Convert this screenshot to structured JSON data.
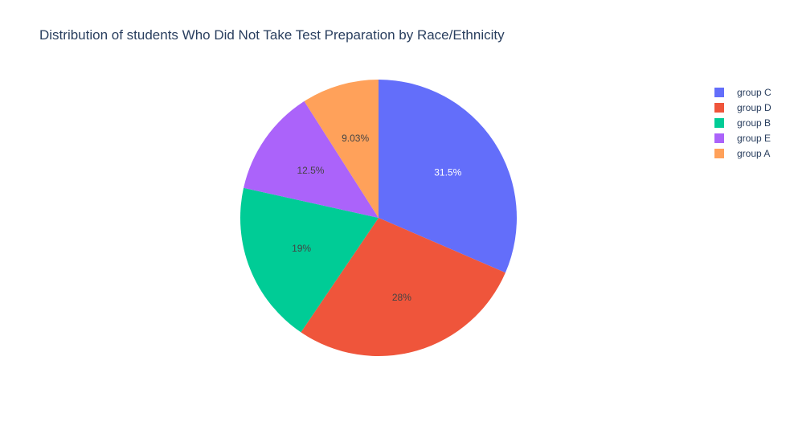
{
  "chart_data": {
    "type": "pie",
    "title": "Distribution of students Who Did Not Take Test Preparation by Race/Ethnicity",
    "labels": [
      "group C",
      "group D",
      "group B",
      "group E",
      "group A"
    ],
    "values": [
      31.5,
      28.0,
      19.0,
      12.5,
      9.03
    ],
    "value_labels": [
      "31.5%",
      "28%",
      "19%",
      "12.5%",
      "9.03%"
    ],
    "colors": [
      "#636efa",
      "#EF553B",
      "#00cc96",
      "#ab63fa",
      "#FFA15A"
    ],
    "label_colors": [
      "#ffffff",
      "#444444",
      "#444444",
      "#444444",
      "#444444"
    ],
    "direction": "clockwise",
    "legend_position": "top-right"
  }
}
